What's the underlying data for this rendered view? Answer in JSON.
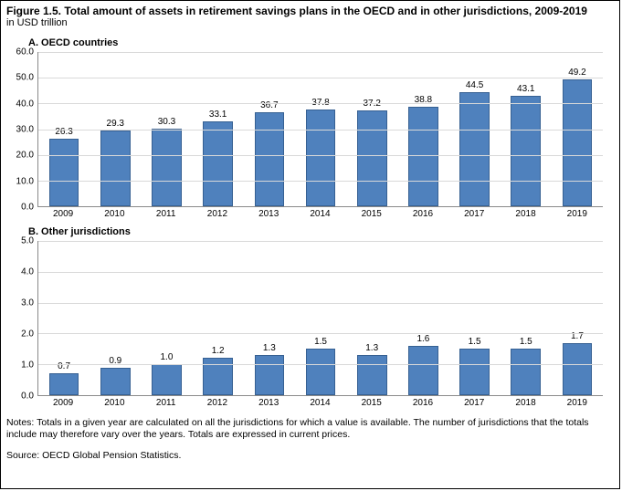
{
  "figure": {
    "title": "Figure 1.5. Total amount of assets in retirement savings plans in the OECD and in other jurisdictions, 2009-2019",
    "subtitle": "in USD trillion",
    "notes": "Notes: Totals in a given year are calculated on all the jurisdictions for which a value is available. The number of jurisdictions that the totals include may therefore vary over the years. Totals are expressed in current prices.",
    "source": "Source: OECD Global Pension Statistics."
  },
  "panelA": {
    "title": "A. OECD countries",
    "type": "bar",
    "categories": [
      "2009",
      "2010",
      "2011",
      "2012",
      "2013",
      "2014",
      "2015",
      "2016",
      "2017",
      "2018",
      "2019"
    ],
    "values": [
      26.3,
      29.3,
      30.3,
      33.1,
      36.7,
      37.8,
      37.2,
      38.8,
      44.5,
      43.1,
      49.2
    ],
    "value_labels": [
      "26.3",
      "29.3",
      "30.3",
      "33.1",
      "36.7",
      "37.8",
      "37.2",
      "38.8",
      "44.5",
      "43.1",
      "49.2"
    ],
    "ylim": [
      0,
      60
    ],
    "ytick_step": 10,
    "yticks": [
      "0.0",
      "10.0",
      "20.0",
      "30.0",
      "40.0",
      "50.0",
      "60.0"
    ],
    "bar_color": "#4f81bd",
    "bar_border": "#366092",
    "grid_color": "#d9d9d9",
    "axis_color": "#8a8a8a",
    "label_fontsize": 10
  },
  "panelB": {
    "title": "B. Other jurisdictions",
    "type": "bar",
    "categories": [
      "2009",
      "2010",
      "2011",
      "2012",
      "2013",
      "2014",
      "2015",
      "2016",
      "2017",
      "2018",
      "2019"
    ],
    "values": [
      0.7,
      0.9,
      1.0,
      1.2,
      1.3,
      1.5,
      1.3,
      1.6,
      1.5,
      1.5,
      1.7
    ],
    "value_labels": [
      "0.7",
      "0.9",
      "1.0",
      "1.2",
      "1.3",
      "1.5",
      "1.3",
      "1.6",
      "1.5",
      "1.5",
      "1.7"
    ],
    "ylim": [
      0,
      5
    ],
    "ytick_step": 1,
    "yticks": [
      "0.0",
      "1.0",
      "2.0",
      "3.0",
      "4.0",
      "5.0"
    ],
    "bar_color": "#4f81bd",
    "bar_border": "#366092",
    "grid_color": "#d9d9d9",
    "axis_color": "#8a8a8a",
    "label_fontsize": 10
  }
}
